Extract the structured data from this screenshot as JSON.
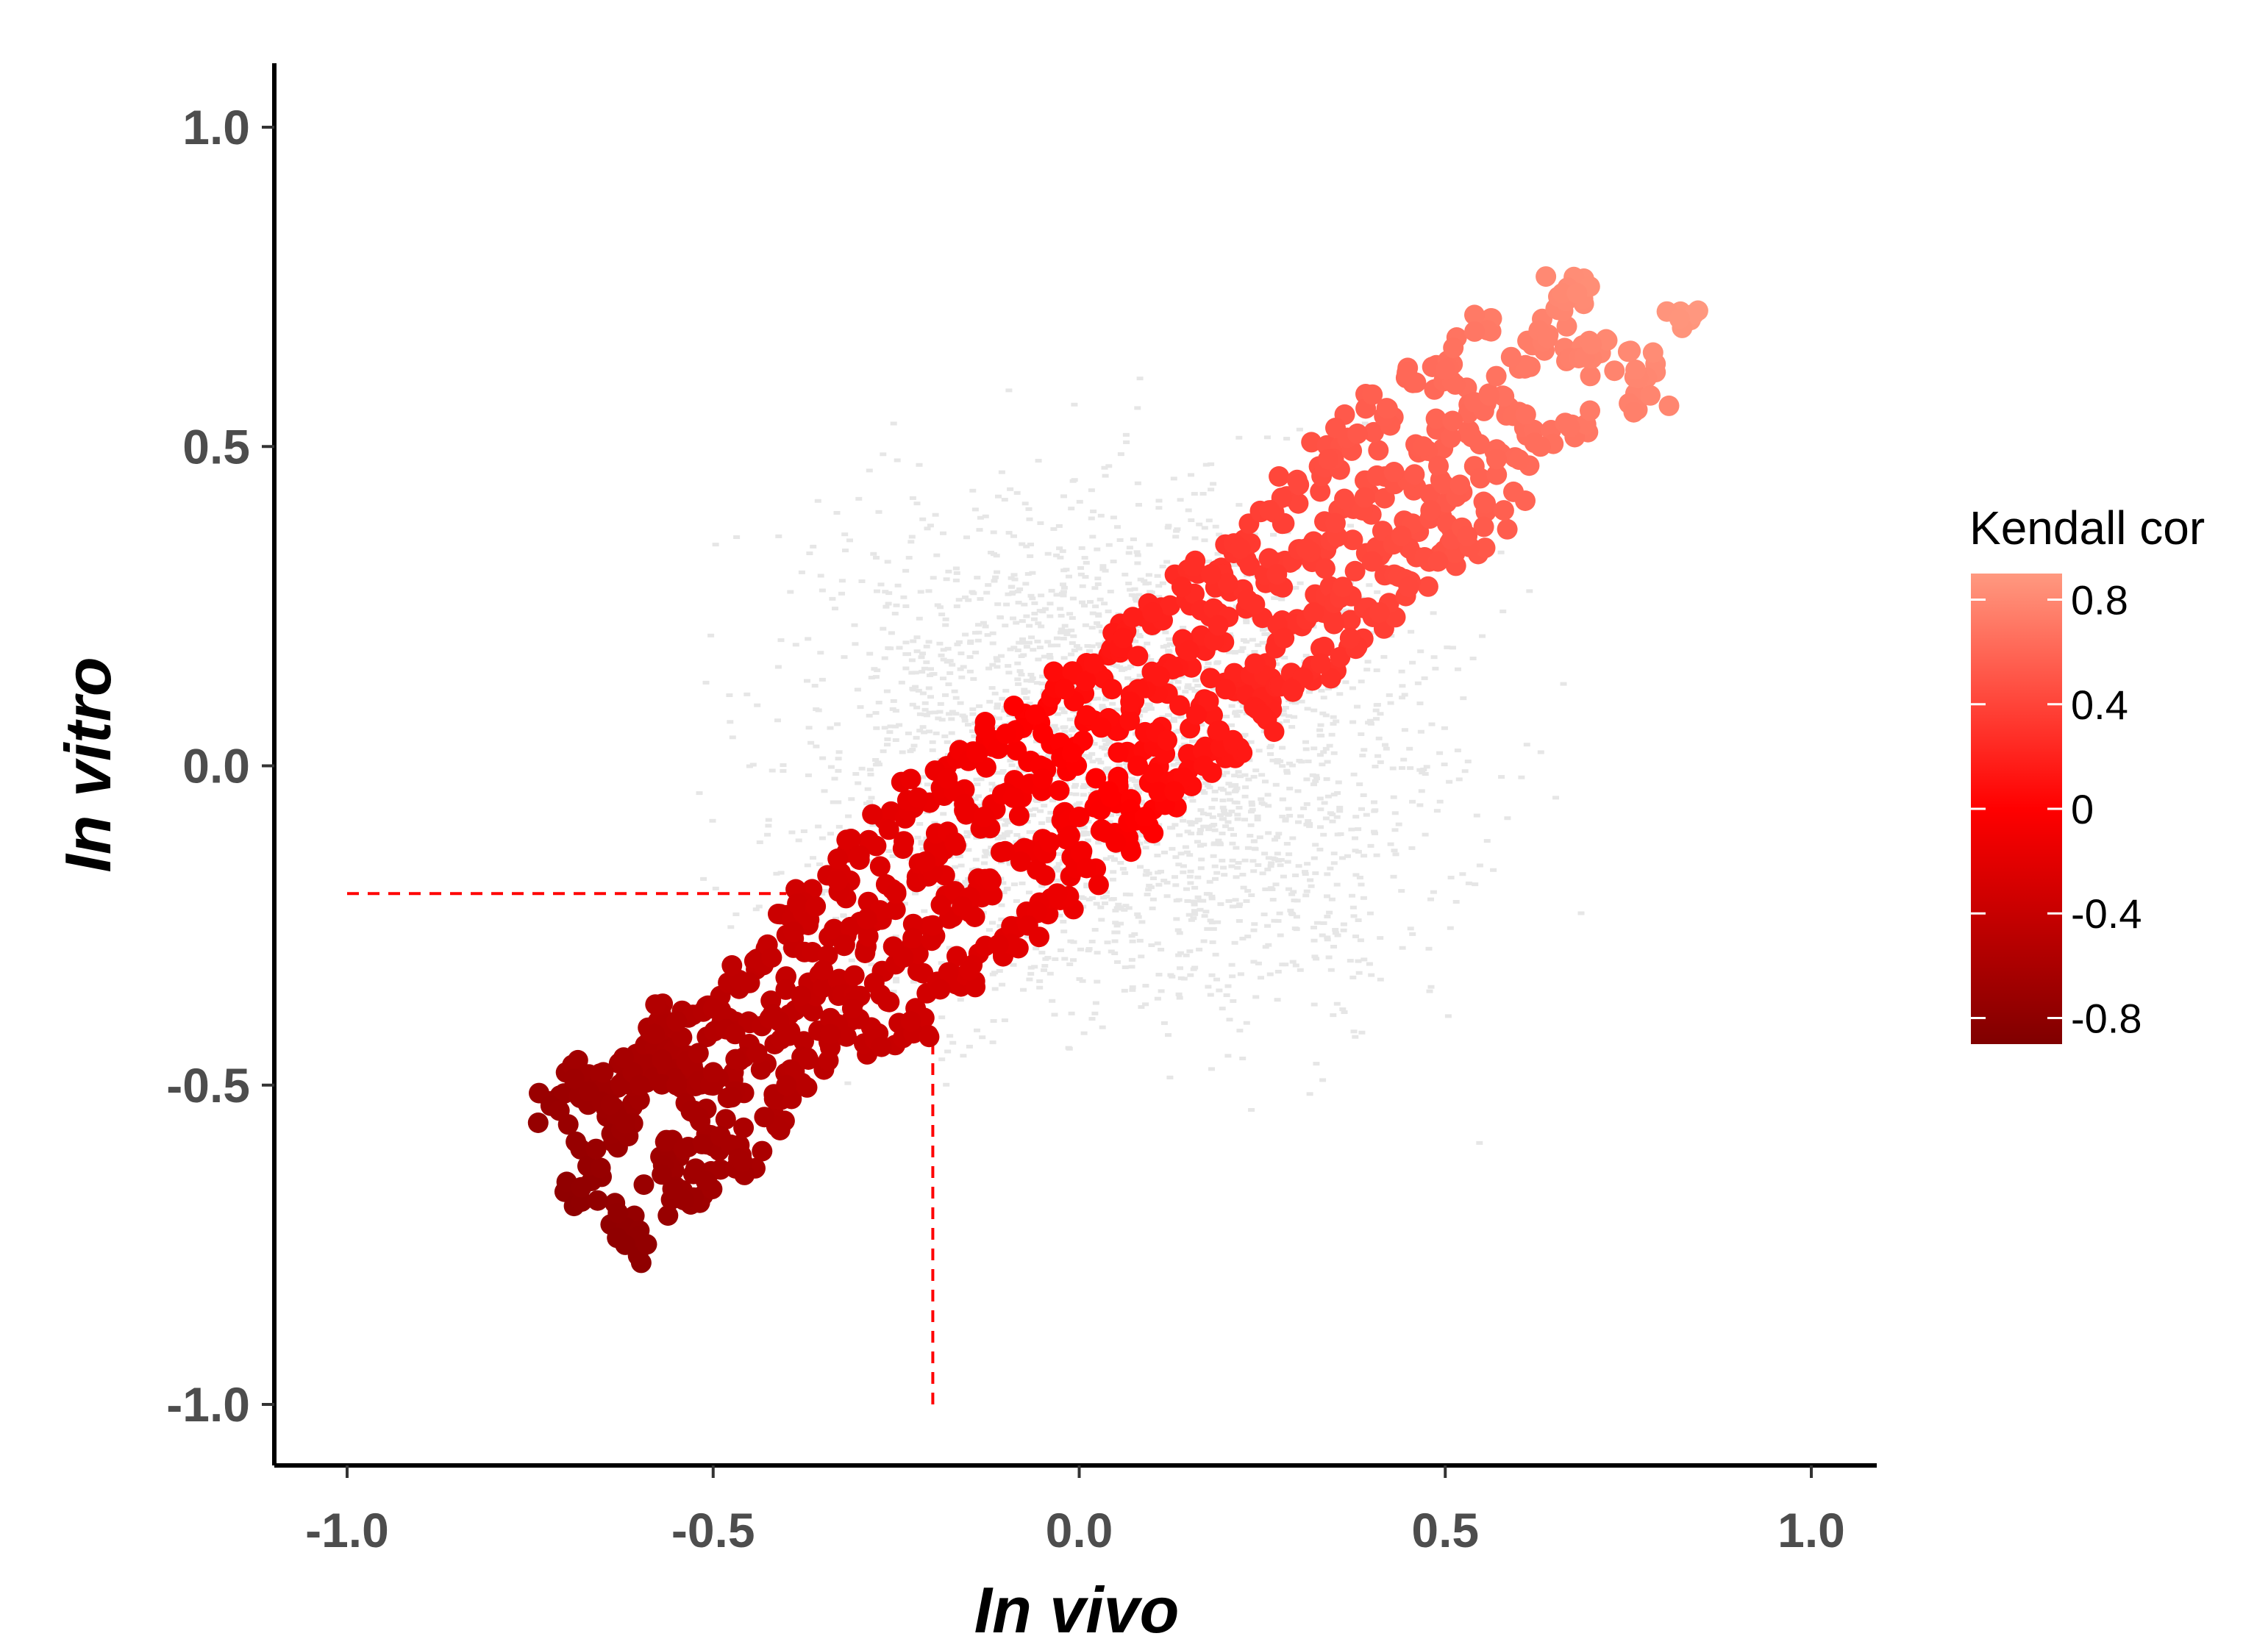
{
  "chart_data": {
    "type": "scatter",
    "xlabel": "In vivo",
    "ylabel": "In vitro",
    "xlim": [
      -1.1,
      1.1
    ],
    "ylim": [
      -1.1,
      1.1
    ],
    "x_ticks": [
      -1.0,
      -0.5,
      0.0,
      0.5,
      1.0
    ],
    "y_ticks": [
      -1.0,
      -0.5,
      0.0,
      0.5,
      1.0
    ],
    "x_tick_labels": [
      "-1.0",
      "-0.5",
      "0.0",
      "0.5",
      "1.0"
    ],
    "y_tick_labels": [
      "-1.0",
      "-0.5",
      "0.0",
      "0.5",
      "1.0"
    ],
    "grid": false,
    "reference_lines": [
      {
        "orientation": "horizontal",
        "y": -0.2,
        "x_from": -1.0,
        "x_to": -0.4,
        "style": "dashed",
        "color": "#ff0000"
      },
      {
        "orientation": "vertical",
        "x": -0.2,
        "y_from": -1.0,
        "y_to": -0.42,
        "style": "dashed",
        "color": "#ff0000"
      }
    ],
    "background_points": {
      "color": "#e6e6e6",
      "description_values": {
        "x_range": [
          -0.85,
          0.95
        ],
        "y_range": [
          -0.85,
          0.88
        ]
      }
    },
    "highlighted_points": [
      {
        "x": -0.71,
        "y": -0.54
      },
      {
        "x": -0.69,
        "y": -0.49
      },
      {
        "x": -0.68,
        "y": -0.66
      },
      {
        "x": -0.67,
        "y": -0.51
      },
      {
        "x": -0.66,
        "y": -0.6
      },
      {
        "x": -0.65,
        "y": -0.48
      },
      {
        "x": -0.64,
        "y": -0.53
      },
      {
        "x": -0.63,
        "y": -0.7
      },
      {
        "x": -0.62,
        "y": -0.56
      },
      {
        "x": -0.62,
        "y": -0.75
      },
      {
        "x": -0.61,
        "y": -0.48
      },
      {
        "x": -0.6,
        "y": -0.5
      },
      {
        "x": -0.58,
        "y": -0.42
      },
      {
        "x": -0.57,
        "y": -0.46
      },
      {
        "x": -0.57,
        "y": -0.64
      },
      {
        "x": -0.55,
        "y": -0.4
      },
      {
        "x": -0.55,
        "y": -0.5
      },
      {
        "x": -0.54,
        "y": -0.6
      },
      {
        "x": -0.54,
        "y": -0.68
      },
      {
        "x": -0.52,
        "y": -0.45
      },
      {
        "x": -0.52,
        "y": -0.55
      },
      {
        "x": -0.51,
        "y": -0.65
      },
      {
        "x": -0.5,
        "y": -0.38
      },
      {
        "x": -0.5,
        "y": -0.48
      },
      {
        "x": -0.49,
        "y": -0.58
      },
      {
        "x": -0.48,
        "y": -0.52
      },
      {
        "x": -0.47,
        "y": -0.42
      },
      {
        "x": -0.46,
        "y": -0.62
      },
      {
        "x": -0.45,
        "y": -0.34
      },
      {
        "x": -0.44,
        "y": -0.45
      },
      {
        "x": -0.43,
        "y": -0.55
      },
      {
        "x": -0.42,
        "y": -0.3
      },
      {
        "x": -0.41,
        "y": -0.4
      },
      {
        "x": -0.4,
        "y": -0.5
      },
      {
        "x": -0.39,
        "y": -0.26
      },
      {
        "x": -0.38,
        "y": -0.36
      },
      {
        "x": -0.37,
        "y": -0.46
      },
      {
        "x": -0.36,
        "y": -0.22
      },
      {
        "x": -0.35,
        "y": -0.32
      },
      {
        "x": -0.34,
        "y": -0.42
      },
      {
        "x": -0.33,
        "y": -0.18
      },
      {
        "x": -0.32,
        "y": -0.28
      },
      {
        "x": -0.31,
        "y": -0.38
      },
      {
        "x": -0.3,
        "y": -0.14
      },
      {
        "x": -0.29,
        "y": -0.24
      },
      {
        "x": -0.28,
        "y": -0.34
      },
      {
        "x": -0.27,
        "y": -0.44
      },
      {
        "x": -0.26,
        "y": -0.1
      },
      {
        "x": -0.25,
        "y": -0.2
      },
      {
        "x": -0.24,
        "y": -0.3
      },
      {
        "x": -0.23,
        "y": -0.4
      },
      {
        "x": -0.22,
        "y": -0.05
      },
      {
        "x": -0.21,
        "y": -0.15
      },
      {
        "x": -0.2,
        "y": -0.25
      },
      {
        "x": -0.19,
        "y": -0.35
      },
      {
        "x": -0.18,
        "y": -0.02
      },
      {
        "x": -0.17,
        "y": -0.12
      },
      {
        "x": -0.16,
        "y": -0.22
      },
      {
        "x": -0.15,
        "y": -0.32
      },
      {
        "x": -0.14,
        "y": 0.02
      },
      {
        "x": -0.13,
        "y": -0.08
      },
      {
        "x": -0.12,
        "y": -0.18
      },
      {
        "x": -0.11,
        "y": -0.28
      },
      {
        "x": -0.1,
        "y": 0.05
      },
      {
        "x": -0.09,
        "y": -0.05
      },
      {
        "x": -0.08,
        "y": -0.15
      },
      {
        "x": -0.07,
        "y": -0.25
      },
      {
        "x": -0.06,
        "y": 0.08
      },
      {
        "x": -0.05,
        "y": -0.02
      },
      {
        "x": -0.04,
        "y": -0.12
      },
      {
        "x": -0.03,
        "y": -0.2
      },
      {
        "x": -0.02,
        "y": 0.12
      },
      {
        "x": -0.01,
        "y": 0.02
      },
      {
        "x": 0.0,
        "y": -0.08
      },
      {
        "x": 0.01,
        "y": -0.16
      },
      {
        "x": 0.02,
        "y": 0.16
      },
      {
        "x": 0.03,
        "y": 0.06
      },
      {
        "x": 0.04,
        "y": -0.04
      },
      {
        "x": 0.05,
        "y": -0.12
      },
      {
        "x": 0.06,
        "y": 0.2
      },
      {
        "x": 0.07,
        "y": 0.1
      },
      {
        "x": 0.08,
        "y": 0.0
      },
      {
        "x": 0.09,
        "y": -0.08
      },
      {
        "x": 0.1,
        "y": 0.24
      },
      {
        "x": 0.11,
        "y": 0.14
      },
      {
        "x": 0.12,
        "y": 0.04
      },
      {
        "x": 0.13,
        "y": -0.04
      },
      {
        "x": 0.14,
        "y": 0.28
      },
      {
        "x": 0.15,
        "y": 0.18
      },
      {
        "x": 0.16,
        "y": 0.08
      },
      {
        "x": 0.17,
        "y": 0.0
      },
      {
        "x": 0.18,
        "y": 0.3
      },
      {
        "x": 0.19,
        "y": 0.22
      },
      {
        "x": 0.2,
        "y": 0.12
      },
      {
        "x": 0.21,
        "y": 0.04
      },
      {
        "x": 0.22,
        "y": 0.34
      },
      {
        "x": 0.23,
        "y": 0.26
      },
      {
        "x": 0.24,
        "y": 0.16
      },
      {
        "x": 0.25,
        "y": 0.08
      },
      {
        "x": 0.26,
        "y": 0.4
      },
      {
        "x": 0.27,
        "y": 0.3
      },
      {
        "x": 0.28,
        "y": 0.2
      },
      {
        "x": 0.29,
        "y": 0.12
      },
      {
        "x": 0.3,
        "y": 0.44
      },
      {
        "x": 0.31,
        "y": 0.34
      },
      {
        "x": 0.32,
        "y": 0.24
      },
      {
        "x": 0.33,
        "y": 0.16
      },
      {
        "x": 0.34,
        "y": 0.48
      },
      {
        "x": 0.35,
        "y": 0.38
      },
      {
        "x": 0.36,
        "y": 0.28
      },
      {
        "x": 0.37,
        "y": 0.2
      },
      {
        "x": 0.38,
        "y": 0.52
      },
      {
        "x": 0.39,
        "y": 0.42
      },
      {
        "x": 0.4,
        "y": 0.32
      },
      {
        "x": 0.41,
        "y": 0.24
      },
      {
        "x": 0.42,
        "y": 0.56
      },
      {
        "x": 0.43,
        "y": 0.46
      },
      {
        "x": 0.44,
        "y": 0.36
      },
      {
        "x": 0.45,
        "y": 0.28
      },
      {
        "x": 0.46,
        "y": 0.6
      },
      {
        "x": 0.47,
        "y": 0.5
      },
      {
        "x": 0.48,
        "y": 0.4
      },
      {
        "x": 0.49,
        "y": 0.32
      },
      {
        "x": 0.5,
        "y": 0.62
      },
      {
        "x": 0.51,
        "y": 0.54
      },
      {
        "x": 0.52,
        "y": 0.44
      },
      {
        "x": 0.53,
        "y": 0.36
      },
      {
        "x": 0.54,
        "y": 0.68
      },
      {
        "x": 0.56,
        "y": 0.58
      },
      {
        "x": 0.57,
        "y": 0.48
      },
      {
        "x": 0.58,
        "y": 0.4
      },
      {
        "x": 0.59,
        "y": 0.64
      },
      {
        "x": 0.61,
        "y": 0.55
      },
      {
        "x": 0.63,
        "y": 0.5
      },
      {
        "x": 0.64,
        "y": 0.67
      },
      {
        "x": 0.66,
        "y": 0.74
      },
      {
        "x": 0.67,
        "y": 0.53
      },
      {
        "x": 0.68,
        "y": 0.74
      },
      {
        "x": 0.69,
        "y": 0.64
      },
      {
        "x": 0.7,
        "y": 0.66
      },
      {
        "x": 0.76,
        "y": 0.62
      },
      {
        "x": 0.78,
        "y": 0.58
      },
      {
        "x": 0.82,
        "y": 0.7
      }
    ],
    "highlighted_color_rule": "Kendall cor (colour scale)",
    "legend": {
      "title": "Kendall cor",
      "position": "right",
      "type": "colorbar",
      "min": -0.9,
      "max": 0.9,
      "breaks": [
        0.8,
        0.4,
        0,
        -0.4,
        -0.8
      ],
      "break_labels": [
        "0.8",
        "0.4",
        "0",
        "-0.4",
        "-0.8"
      ],
      "colors": {
        "low": "#800000",
        "mid": "#ff0000",
        "high": "#ff9980"
      }
    }
  }
}
